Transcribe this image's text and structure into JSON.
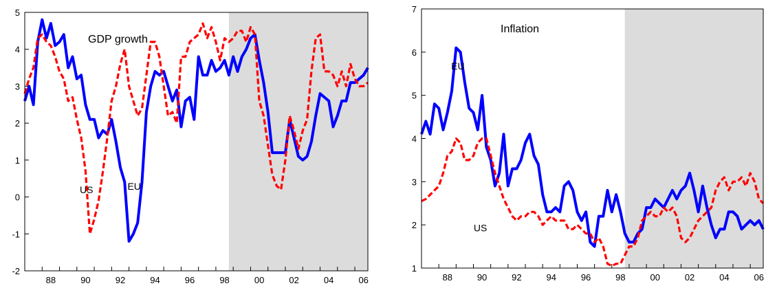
{
  "chart_data": [
    {
      "type": "line",
      "title": "GDP growth",
      "xlabel": "",
      "ylabel": "",
      "xlim": [
        1987.0,
        2006.75
      ],
      "ylim": [
        -2,
        5
      ],
      "y_ticks": [
        -2,
        -1,
        0,
        1,
        2,
        3,
        4,
        5
      ],
      "x_ticks": [
        1988,
        1990,
        1992,
        1994,
        1996,
        1998,
        2000,
        2002,
        2004,
        2006
      ],
      "x_tick_labels": [
        "88",
        "90",
        "92",
        "94",
        "96",
        "98",
        "00",
        "02",
        "04",
        "06"
      ],
      "shaded_region": [
        1998.75,
        2006.75
      ],
      "grid": false,
      "series": [
        {
          "name": "EU",
          "color": "#0000ff",
          "style": "solid",
          "label_at": [
            1993.3,
            0.2
          ],
          "x": [
            1987.0,
            1987.25,
            1987.5,
            1987.75,
            1988.0,
            1988.25,
            1988.5,
            1988.75,
            1989.0,
            1989.25,
            1989.5,
            1989.75,
            1990.0,
            1990.25,
            1990.5,
            1990.75,
            1991.0,
            1991.25,
            1991.5,
            1991.75,
            1992.0,
            1992.25,
            1992.5,
            1992.75,
            1993.0,
            1993.25,
            1993.5,
            1993.75,
            1994.0,
            1994.25,
            1994.5,
            1994.75,
            1995.0,
            1995.25,
            1995.5,
            1995.75,
            1996.0,
            1996.25,
            1996.5,
            1996.75,
            1997.0,
            1997.25,
            1997.5,
            1997.75,
            1998.0,
            1998.25,
            1998.5,
            1998.75,
            1999.0,
            1999.25,
            1999.5,
            1999.75,
            2000.0,
            2000.25,
            2000.5,
            2000.75,
            2001.0,
            2001.25,
            2001.5,
            2001.75,
            2002.0,
            2002.25,
            2002.5,
            2002.75,
            2003.0,
            2003.25,
            2003.5,
            2003.75,
            2004.0,
            2004.25,
            2004.5,
            2004.75,
            2005.0,
            2005.25,
            2005.5,
            2005.75,
            2006.0,
            2006.25,
            2006.5,
            2006.75
          ],
          "y": [
            2.6,
            3.0,
            2.5,
            4.2,
            4.8,
            4.3,
            4.7,
            4.1,
            4.2,
            4.4,
            3.5,
            3.8,
            3.2,
            3.3,
            2.5,
            2.1,
            2.1,
            1.6,
            1.8,
            1.7,
            2.1,
            1.5,
            0.8,
            0.4,
            -1.2,
            -1.0,
            -0.7,
            0.4,
            2.3,
            3.0,
            3.4,
            3.3,
            3.4,
            3.0,
            2.6,
            2.9,
            1.9,
            2.6,
            2.7,
            2.1,
            3.8,
            3.3,
            3.3,
            3.7,
            3.4,
            3.5,
            3.7,
            3.3,
            3.8,
            3.4,
            3.8,
            4.0,
            4.3,
            4.4,
            3.7,
            3.1,
            2.3,
            1.2,
            1.2,
            1.2,
            1.2,
            2.1,
            1.6,
            1.1,
            1.0,
            1.1,
            1.5,
            2.2,
            2.8,
            2.7,
            2.6,
            1.9,
            2.2,
            2.6,
            2.6,
            3.1,
            3.1,
            3.2,
            3.3,
            3.5
          ]
        },
        {
          "name": "US",
          "color": "#ff0000",
          "style": "dashed",
          "label_at": [
            1990.55,
            0.1
          ],
          "x": [
            1987.0,
            1987.25,
            1987.5,
            1987.75,
            1988.0,
            1988.25,
            1988.5,
            1988.75,
            1989.0,
            1989.25,
            1989.5,
            1989.75,
            1990.0,
            1990.25,
            1990.5,
            1990.75,
            1991.0,
            1991.25,
            1991.5,
            1991.75,
            1992.0,
            1992.25,
            1992.5,
            1992.75,
            1993.0,
            1993.25,
            1993.5,
            1993.75,
            1994.0,
            1994.25,
            1994.5,
            1994.75,
            1995.0,
            1995.25,
            1995.5,
            1995.75,
            1996.0,
            1996.25,
            1996.5,
            1996.75,
            1997.0,
            1997.25,
            1997.5,
            1997.75,
            1998.0,
            1998.25,
            1998.5,
            1998.75,
            1999.0,
            1999.25,
            1999.5,
            1999.75,
            2000.0,
            2000.25,
            2000.5,
            2000.75,
            2001.0,
            2001.25,
            2001.5,
            2001.75,
            2002.0,
            2002.25,
            2002.5,
            2002.75,
            2003.0,
            2003.25,
            2003.5,
            2003.75,
            2004.0,
            2004.25,
            2004.5,
            2004.75,
            2005.0,
            2005.25,
            2005.5,
            2005.75,
            2006.0,
            2006.25,
            2006.5,
            2006.75
          ],
          "y": [
            2.8,
            3.2,
            3.5,
            4.3,
            4.4,
            4.2,
            4.1,
            3.8,
            3.4,
            3.2,
            2.6,
            2.7,
            2.1,
            1.6,
            0.7,
            -1.0,
            -0.6,
            -0.1,
            0.7,
            1.6,
            2.6,
            3.0,
            3.6,
            4.0,
            3.0,
            2.6,
            2.2,
            2.4,
            3.3,
            4.2,
            4.2,
            3.8,
            3.0,
            2.2,
            2.3,
            2.0,
            3.8,
            3.8,
            4.2,
            4.3,
            4.4,
            4.7,
            4.3,
            4.6,
            4.2,
            3.7,
            4.3,
            4.2,
            4.3,
            4.5,
            4.5,
            4.2,
            4.6,
            4.4,
            2.6,
            2.2,
            1.4,
            0.6,
            0.3,
            0.2,
            1.0,
            2.2,
            1.8,
            1.3,
            1.8,
            2.1,
            3.4,
            4.3,
            4.4,
            3.4,
            3.4,
            3.3,
            3.0,
            3.4,
            3.0,
            3.6,
            3.2,
            3.0,
            3.0,
            3.1
          ]
        }
      ]
    },
    {
      "type": "line",
      "title": "Inflation",
      "xlabel": "",
      "ylabel": "",
      "xlim": [
        1987.0,
        2006.75
      ],
      "ylim": [
        1,
        7
      ],
      "y_ticks": [
        1,
        2,
        3,
        4,
        5,
        6,
        7
      ],
      "x_ticks": [
        1988,
        1990,
        1992,
        1994,
        1996,
        1998,
        2000,
        2002,
        2004,
        2006
      ],
      "x_tick_labels": [
        "88",
        "90",
        "92",
        "94",
        "96",
        "98",
        "00",
        "02",
        "04",
        "06"
      ],
      "shaded_region": [
        1998.75,
        2006.75
      ],
      "grid": false,
      "series": [
        {
          "name": "EU",
          "color": "#0000ff",
          "style": "solid",
          "label_at": [
            1989.1,
            5.6
          ],
          "x": [
            1987.0,
            1987.25,
            1987.5,
            1987.75,
            1988.0,
            1988.25,
            1988.5,
            1988.75,
            1989.0,
            1989.25,
            1989.5,
            1989.75,
            1990.0,
            1990.25,
            1990.5,
            1990.75,
            1991.0,
            1991.25,
            1991.5,
            1991.75,
            1992.0,
            1992.25,
            1992.5,
            1992.75,
            1993.0,
            1993.25,
            1993.5,
            1993.75,
            1994.0,
            1994.25,
            1994.5,
            1994.75,
            1995.0,
            1995.25,
            1995.5,
            1995.75,
            1996.0,
            1996.25,
            1996.5,
            1996.75,
            1997.0,
            1997.25,
            1997.5,
            1997.75,
            1998.0,
            1998.25,
            1998.5,
            1998.75,
            1999.0,
            1999.25,
            1999.5,
            1999.75,
            2000.0,
            2000.25,
            2000.5,
            2000.75,
            2001.0,
            2001.25,
            2001.5,
            2001.75,
            2002.0,
            2002.25,
            2002.5,
            2002.75,
            2003.0,
            2003.25,
            2003.5,
            2003.75,
            2004.0,
            2004.25,
            2004.5,
            2004.75,
            2005.0,
            2005.25,
            2005.5,
            2005.75,
            2006.0,
            2006.25,
            2006.5,
            2006.75
          ],
          "y": [
            4.1,
            4.4,
            4.1,
            4.8,
            4.7,
            4.2,
            4.6,
            5.1,
            6.1,
            6.0,
            5.3,
            4.7,
            4.6,
            4.2,
            5.0,
            3.8,
            3.5,
            2.9,
            3.2,
            4.1,
            2.9,
            3.3,
            3.3,
            3.5,
            3.9,
            4.1,
            3.6,
            3.4,
            2.7,
            2.3,
            2.3,
            2.4,
            2.3,
            2.9,
            3.0,
            2.8,
            2.3,
            2.1,
            2.3,
            1.6,
            1.5,
            2.2,
            2.2,
            2.8,
            2.3,
            2.7,
            2.3,
            1.8,
            1.6,
            1.6,
            1.8,
            1.9,
            2.4,
            2.4,
            2.6,
            2.5,
            2.4,
            2.6,
            2.8,
            2.6,
            2.8,
            2.9,
            3.2,
            2.8,
            2.3,
            2.9,
            2.4,
            2.0,
            1.7,
            1.9,
            1.9,
            2.3,
            2.3,
            2.2,
            1.9,
            2.0,
            2.1,
            2.0,
            2.1,
            1.9
          ]
        },
        {
          "name": "US",
          "color": "#ff0000",
          "style": "dashed",
          "label_at": [
            1990.4,
            1.85
          ],
          "x": [
            1987.0,
            1987.25,
            1987.5,
            1987.75,
            1988.0,
            1988.25,
            1988.5,
            1988.75,
            1989.0,
            1989.25,
            1989.5,
            1989.75,
            1990.0,
            1990.25,
            1990.5,
            1990.75,
            1991.0,
            1991.25,
            1991.5,
            1991.75,
            1992.0,
            1992.25,
            1992.5,
            1992.75,
            1993.0,
            1993.25,
            1993.5,
            1993.75,
            1994.0,
            1994.25,
            1994.5,
            1994.75,
            1995.0,
            1995.25,
            1995.5,
            1995.75,
            1996.0,
            1996.25,
            1996.5,
            1996.75,
            1997.0,
            1997.25,
            1997.5,
            1997.75,
            1998.0,
            1998.25,
            1998.5,
            1998.75,
            1999.0,
            1999.25,
            1999.5,
            1999.75,
            2000.0,
            2000.25,
            2000.5,
            2000.75,
            2001.0,
            2001.25,
            2001.5,
            2001.75,
            2002.0,
            2002.25,
            2002.5,
            2002.75,
            2003.0,
            2003.25,
            2003.5,
            2003.75,
            2004.0,
            2004.25,
            2004.5,
            2004.75,
            2005.0,
            2005.25,
            2005.5,
            2005.75,
            2006.0,
            2006.25,
            2006.5,
            2006.75
          ],
          "y": [
            2.55,
            2.6,
            2.7,
            2.8,
            2.9,
            3.2,
            3.6,
            3.7,
            4.0,
            3.9,
            3.5,
            3.5,
            3.6,
            3.9,
            4.0,
            4.0,
            3.6,
            3.2,
            2.9,
            2.6,
            2.4,
            2.2,
            2.1,
            2.2,
            2.2,
            2.3,
            2.3,
            2.2,
            2.0,
            2.1,
            2.2,
            2.1,
            2.1,
            2.1,
            1.9,
            1.9,
            2.0,
            1.9,
            1.8,
            1.8,
            1.6,
            1.7,
            1.5,
            1.1,
            1.05,
            1.1,
            1.1,
            1.3,
            1.5,
            1.5,
            1.7,
            2.1,
            2.2,
            2.3,
            2.2,
            2.2,
            2.4,
            2.3,
            2.4,
            2.2,
            1.7,
            1.6,
            1.7,
            1.9,
            2.1,
            2.2,
            2.3,
            2.4,
            2.8,
            3.0,
            3.1,
            2.8,
            3.0,
            3.0,
            3.1,
            2.9,
            3.2,
            3.0,
            2.6,
            2.5
          ]
        }
      ]
    }
  ]
}
